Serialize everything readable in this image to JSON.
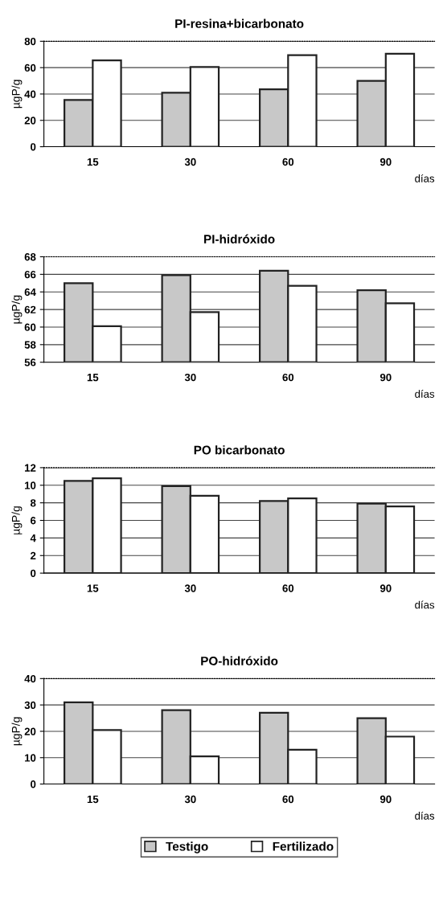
{
  "chart_data": [
    {
      "type": "bar",
      "title": "PI-resina+bicarbonato",
      "ylabel": "µgP/g",
      "xlabel": "días",
      "categories": [
        "15",
        "30",
        "60",
        "90"
      ],
      "ylim": [
        0,
        80
      ],
      "yticks": [
        0,
        20,
        40,
        60,
        80
      ],
      "grid": "y",
      "series": [
        {
          "color": "#c8c8c8",
          "values": [
            35.5,
            41,
            43.5,
            50
          ]
        },
        {
          "color": "#ffffff",
          "values": [
            65.5,
            60.5,
            69.5,
            70.5
          ]
        }
      ]
    },
    {
      "type": "bar",
      "title": "PI-hidróxido",
      "ylabel": "µgP/g",
      "xlabel": "días",
      "categories": [
        "15",
        "30",
        "60",
        "90"
      ],
      "ylim": [
        56,
        68
      ],
      "yticks": [
        56,
        58,
        60,
        62,
        64,
        66,
        68
      ],
      "grid": "y",
      "series": [
        {
          "color": "#c8c8c8",
          "values": [
            65,
            65.9,
            66.4,
            64.2
          ]
        },
        {
          "color": "#ffffff",
          "values": [
            60.1,
            61.7,
            64.7,
            62.7
          ]
        }
      ]
    },
    {
      "type": "bar",
      "title": "PO bicarbonato",
      "ylabel": "µgP/g",
      "xlabel": "días",
      "categories": [
        "15",
        "30",
        "60",
        "90"
      ],
      "ylim": [
        0,
        12
      ],
      "yticks": [
        0,
        2,
        4,
        6,
        8,
        10,
        12
      ],
      "grid": "y",
      "series": [
        {
          "color": "#c8c8c8",
          "values": [
            10.5,
            9.9,
            8.2,
            7.9
          ]
        },
        {
          "color": "#ffffff",
          "values": [
            10.8,
            8.8,
            8.5,
            7.6
          ]
        }
      ]
    },
    {
      "type": "bar",
      "title": "PO-hidróxido",
      "ylabel": "µgP/g",
      "xlabel": "días",
      "categories": [
        "15",
        "30",
        "60",
        "90"
      ],
      "ylim": [
        0,
        40
      ],
      "yticks": [
        0,
        10,
        20,
        30,
        40
      ],
      "grid": "y",
      "legend": "bottom",
      "series": [
        {
          "name": "Testigo",
          "color": "#c8c8c8",
          "values": [
            31,
            28,
            27,
            25
          ]
        },
        {
          "name": "Fertilizado",
          "color": "#ffffff",
          "values": [
            20.5,
            10.5,
            13,
            18
          ]
        }
      ]
    }
  ]
}
